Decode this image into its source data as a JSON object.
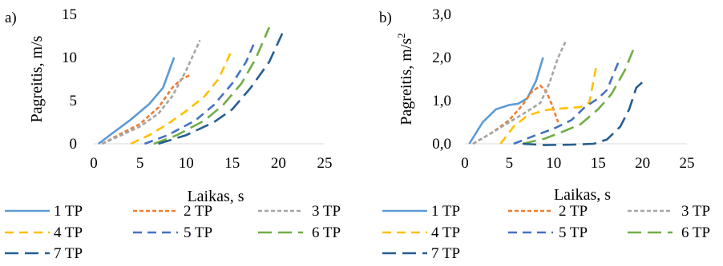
{
  "chart_data": [
    {
      "panel_label": "a)",
      "type": "line",
      "xlabel": "Laikas, s",
      "ylabel": "Pagreitis, m/s",
      "ylabel_superscript": "",
      "xlim": [
        0,
        25
      ],
      "ylim": [
        0,
        15
      ],
      "x_ticks": [
        "0",
        "5",
        "10",
        "15",
        "20",
        "25"
      ],
      "y_ticks": [
        "0",
        "5",
        "10",
        "15"
      ],
      "grid": false,
      "legend_position": "bottom",
      "series": [
        {
          "name": "1 TP",
          "color": "#5b9bd5",
          "dash": "solid",
          "points": [
            [
              0.5,
              0
            ],
            [
              2,
              1.2
            ],
            [
              4,
              2.8
            ],
            [
              6,
              4.6
            ],
            [
              7.5,
              6.5
            ],
            [
              8.7,
              10
            ]
          ]
        },
        {
          "name": "2 TP",
          "color": "#ed7d31",
          "dash": "short",
          "points": [
            [
              0.9,
              0
            ],
            [
              3,
              1.2
            ],
            [
              5,
              2.3
            ],
            [
              7,
              4.2
            ],
            [
              8.5,
              6.5
            ],
            [
              9.5,
              7.5
            ],
            [
              10.5,
              8
            ]
          ]
        },
        {
          "name": "3 TP",
          "color": "#a5a5a5",
          "dash": "short",
          "points": [
            [
              0.9,
              0
            ],
            [
              3,
              1
            ],
            [
              5,
              2
            ],
            [
              7,
              3.5
            ],
            [
              8.5,
              5.5
            ],
            [
              10,
              8.5
            ],
            [
              11.5,
              12
            ]
          ]
        },
        {
          "name": "4 TP",
          "color": "#ffc000",
          "dash": "medium",
          "points": [
            [
              4,
              0
            ],
            [
              6,
              1
            ],
            [
              8,
              2.3
            ],
            [
              10,
              3.8
            ],
            [
              12,
              5.5
            ],
            [
              13.5,
              7.5
            ],
            [
              14.8,
              10.5
            ]
          ]
        },
        {
          "name": "5 TP",
          "color": "#4472c4",
          "dash": "medium",
          "points": [
            [
              5.5,
              0
            ],
            [
              8,
              1
            ],
            [
              11,
              2.7
            ],
            [
              13,
              4.5
            ],
            [
              15,
              7
            ],
            [
              16.5,
              9.5
            ],
            [
              17.5,
              12
            ]
          ]
        },
        {
          "name": "6 TP",
          "color": "#70ad47",
          "dash": "long",
          "points": [
            [
              6.5,
              0
            ],
            [
              9,
              1
            ],
            [
              12,
              2.7
            ],
            [
              14,
              4.5
            ],
            [
              16,
              7
            ],
            [
              17.5,
              9.8
            ],
            [
              19,
              13.5
            ]
          ]
        },
        {
          "name": "7 TP",
          "color": "#255e91",
          "dash": "long",
          "points": [
            [
              7,
              0
            ],
            [
              10,
              1
            ],
            [
              13,
              2.5
            ],
            [
              15,
              4
            ],
            [
              17,
              6.5
            ],
            [
              19,
              9.5
            ],
            [
              20.5,
              13
            ]
          ]
        }
      ]
    },
    {
      "panel_label": "b)",
      "type": "line",
      "xlabel": "Laikas, s",
      "ylabel": "Pagreitis, m/s",
      "ylabel_superscript": "2",
      "xlim": [
        0,
        25
      ],
      "ylim": [
        0,
        3
      ],
      "x_ticks": [
        "0",
        "5",
        "10",
        "15",
        "20",
        "25"
      ],
      "y_ticks": [
        "0,0",
        "1,0",
        "2,0",
        "3,0"
      ],
      "grid": false,
      "legend_position": "bottom",
      "series": [
        {
          "name": "1 TP",
          "color": "#5b9bd5",
          "dash": "solid",
          "points": [
            [
              0.5,
              0
            ],
            [
              2,
              0.5
            ],
            [
              3.5,
              0.8
            ],
            [
              5,
              0.9
            ],
            [
              6,
              0.93
            ],
            [
              7,
              1.05
            ],
            [
              8,
              1.45
            ],
            [
              8.8,
              2
            ]
          ]
        },
        {
          "name": "2 TP",
          "color": "#ed7d31",
          "dash": "short",
          "points": [
            [
              0.9,
              0
            ],
            [
              3,
              0.25
            ],
            [
              5,
              0.55
            ],
            [
              6.5,
              0.9
            ],
            [
              7.5,
              1.2
            ],
            [
              8.5,
              1.35
            ],
            [
              9.2,
              1.2
            ],
            [
              9.8,
              0.9
            ],
            [
              10.5,
              0.5
            ]
          ]
        },
        {
          "name": "3 TP",
          "color": "#a5a5a5",
          "dash": "short",
          "points": [
            [
              0.9,
              0
            ],
            [
              3,
              0.25
            ],
            [
              5,
              0.5
            ],
            [
              7,
              0.75
            ],
            [
              8.5,
              0.95
            ],
            [
              9.5,
              1.4
            ],
            [
              10.5,
              2
            ],
            [
              11.4,
              2.4
            ]
          ]
        },
        {
          "name": "4 TP",
          "color": "#ffc000",
          "dash": "medium",
          "points": [
            [
              4,
              0
            ],
            [
              5.5,
              0.4
            ],
            [
              7,
              0.65
            ],
            [
              9,
              0.78
            ],
            [
              11,
              0.82
            ],
            [
              13,
              0.85
            ],
            [
              14,
              0.95
            ],
            [
              14.8,
              1.8
            ]
          ]
        },
        {
          "name": "5 TP",
          "color": "#4472c4",
          "dash": "medium",
          "points": [
            [
              5.5,
              0
            ],
            [
              8,
              0.2
            ],
            [
              10,
              0.35
            ],
            [
              12,
              0.55
            ],
            [
              13.5,
              0.85
            ],
            [
              15,
              1.05
            ],
            [
              16,
              1.25
            ],
            [
              17.5,
              2
            ]
          ]
        },
        {
          "name": "6 TP",
          "color": "#70ad47",
          "dash": "long",
          "points": [
            [
              6.5,
              0
            ],
            [
              9,
              0.12
            ],
            [
              11,
              0.28
            ],
            [
              13,
              0.45
            ],
            [
              15,
              0.8
            ],
            [
              16.5,
              1.15
            ],
            [
              18,
              1.7
            ],
            [
              19.1,
              2.25
            ]
          ]
        },
        {
          "name": "7 TP",
          "color": "#255e91",
          "dash": "long",
          "points": [
            [
              6.5,
              0
            ],
            [
              9,
              -0.03
            ],
            [
              12,
              -0.02
            ],
            [
              14.5,
              0
            ],
            [
              16,
              0.1
            ],
            [
              17.5,
              0.4
            ],
            [
              18.5,
              0.8
            ],
            [
              19.3,
              1.3
            ],
            [
              20,
              1.43
            ],
            [
              20.5,
              1.45
            ]
          ]
        }
      ]
    }
  ]
}
